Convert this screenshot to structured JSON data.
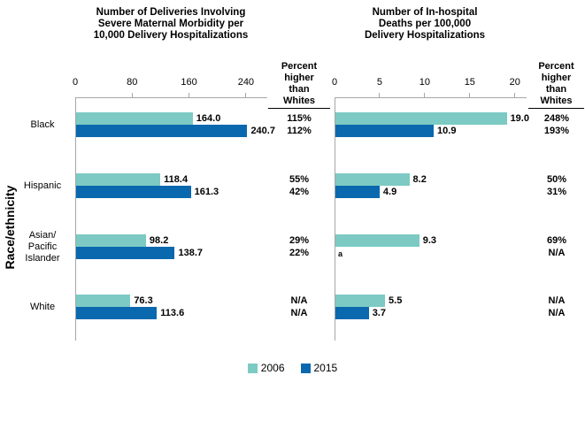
{
  "figure": {
    "ylabel": "Race/ethnicity",
    "legend": [
      {
        "label": "2006",
        "color": "#7CCAC3"
      },
      {
        "label": "2015",
        "color": "#0A68AE"
      }
    ]
  },
  "chart_data": [
    {
      "type": "bar",
      "orientation": "horizontal",
      "title": "Number of Deliveries Involving\nSevere Maternal Morbidity per\n10,000 Delivery Hospitalizations",
      "categories": [
        "Black",
        "Hispanic",
        "Asian/\nPacific\nIslander",
        "White"
      ],
      "series": [
        {
          "name": "2006",
          "color": "#7CCAC3",
          "values": [
            164.0,
            118.4,
            98.2,
            76.3
          ]
        },
        {
          "name": "2015",
          "color": "#0A68AE",
          "values": [
            240.7,
            161.3,
            138.7,
            113.6
          ]
        }
      ],
      "value_labels": [
        [
          "164.0",
          "240.7"
        ],
        [
          "118.4",
          "161.3"
        ],
        [
          "98.2",
          "138.7"
        ],
        [
          "76.3",
          "113.6"
        ]
      ],
      "xticks": [
        0,
        80,
        160,
        240
      ],
      "xlim": [
        0,
        270
      ],
      "grid": false,
      "percent_higher_than_whites": {
        "header": "Percent\nhigher\nthan",
        "header_underlined": "Whites",
        "values": [
          [
            "115%",
            "112%"
          ],
          [
            "55%",
            "42%"
          ],
          [
            "29%",
            "22%"
          ],
          [
            "N/A",
            "N/A"
          ]
        ]
      }
    },
    {
      "type": "bar",
      "orientation": "horizontal",
      "title": "Number of In-hospital\nDeaths per 100,000\nDelivery Hospitalizations",
      "categories": [
        "Black",
        "Hispanic",
        "Asian/\nPacific\nIslander",
        "White"
      ],
      "series": [
        {
          "name": "2006",
          "color": "#7CCAC3",
          "values": [
            19.0,
            8.2,
            9.3,
            5.5
          ]
        },
        {
          "name": "2015",
          "color": "#0A68AE",
          "values": [
            10.9,
            4.9,
            null,
            3.7
          ]
        }
      ],
      "value_labels": [
        [
          "19.0",
          "10.9"
        ],
        [
          "8.2",
          "4.9"
        ],
        [
          "9.3",
          "a"
        ],
        [
          "5.5",
          "3.7"
        ]
      ],
      "xticks": [
        0,
        5,
        10,
        15,
        20
      ],
      "xlim": [
        0,
        21.3
      ],
      "grid": false,
      "percent_higher_than_whites": {
        "header": "Percent\nhigher\nthan",
        "header_underlined": "Whites",
        "values": [
          [
            "248%",
            "193%"
          ],
          [
            "50%",
            "31%"
          ],
          [
            "69%",
            "N/A"
          ],
          [
            "N/A",
            "N/A"
          ]
        ]
      }
    }
  ]
}
